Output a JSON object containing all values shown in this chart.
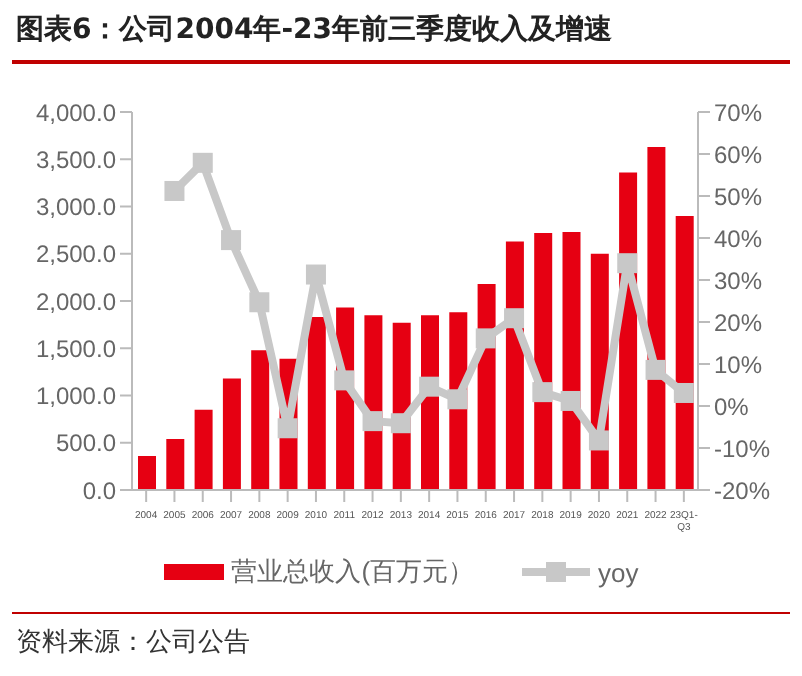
{
  "chart_data": {
    "type": "bar",
    "title": "图表6：公司2004年-23年前三季度收入及增速",
    "categories": [
      "2004",
      "2005",
      "2006",
      "2007",
      "2008",
      "2009",
      "2010",
      "2011",
      "2012",
      "2013",
      "2014",
      "2015",
      "2016",
      "2017",
      "2018",
      "2019",
      "2020",
      "2021",
      "2022",
      "23Q1-Q3"
    ],
    "series": [
      {
        "name": "营业总收入(百万元）",
        "color": "#e60012",
        "values": [
          360,
          540,
          850,
          1180,
          1480,
          1390,
          1830,
          1930,
          1850,
          1770,
          1850,
          1880,
          2180,
          2630,
          2720,
          2730,
          2500,
          3360,
          3630,
          2900
        ]
      },
      {
        "name": "yoy",
        "type": "line",
        "axis": "y2",
        "color": "#c8c8c8",
        "marker": "square",
        "values": [
          null,
          51.2,
          57.9,
          39.5,
          24.7,
          -5.3,
          31.3,
          6.1,
          -3.6,
          -4.1,
          4.6,
          1.6,
          16.1,
          20.9,
          3.3,
          1.2,
          -8.2,
          34.0,
          8.6,
          3.1
        ]
      }
    ],
    "ylim": [
      0,
      4000
    ],
    "yticks": [
      {
        "value": 0,
        "label": "0.0"
      },
      {
        "value": 500,
        "label": "500.0"
      },
      {
        "value": 1000,
        "label": "1,000.0"
      },
      {
        "value": 1500,
        "label": "1,500.0"
      },
      {
        "value": 2000,
        "label": "2,000.0"
      },
      {
        "value": 2500,
        "label": "2,500.0"
      },
      {
        "value": 3000,
        "label": "3,000.0"
      },
      {
        "value": 3500,
        "label": "3,500.0"
      },
      {
        "value": 4000,
        "label": "4,000.0"
      }
    ],
    "y2lim": [
      -20,
      70
    ],
    "y2ticks": [
      {
        "value": -20,
        "label": "-20%"
      },
      {
        "value": -10,
        "label": "-10%"
      },
      {
        "value": 0,
        "label": "0%"
      },
      {
        "value": 10,
        "label": "10%"
      },
      {
        "value": 20,
        "label": "20%"
      },
      {
        "value": 30,
        "label": "30%"
      },
      {
        "value": 40,
        "label": "40%"
      },
      {
        "value": 50,
        "label": "50%"
      },
      {
        "value": 60,
        "label": "60%"
      },
      {
        "value": 70,
        "label": "70%"
      }
    ],
    "grid": false,
    "legend": "bottom",
    "annotations": [
      "资料来源：公司公告"
    ]
  }
}
